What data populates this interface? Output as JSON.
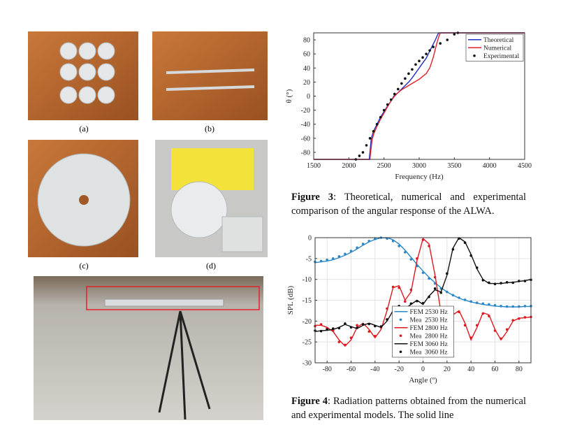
{
  "figure_labels": [
    "(a)",
    "(b)",
    "(c)",
    "(d)"
  ],
  "captions": {
    "figure3": {
      "label": "Figure 3",
      "text": ": Theoretical, numerical and experimental comparison of the angular response of the ALWA."
    },
    "figure4": {
      "label": "Figure 4",
      "text": ": Radiation patterns obtained from the numerical and experimental models. The solid line"
    }
  },
  "chart_data": [
    {
      "type": "line",
      "xlabel": "Frequency (Hz)",
      "ylabel": "θ (°)",
      "xlim": [
        1500,
        4500
      ],
      "ylim": [
        -90,
        90
      ],
      "xticks": [
        1500,
        2000,
        2500,
        3000,
        3500,
        4000,
        4500
      ],
      "yticks": [
        -80,
        -60,
        -40,
        -20,
        0,
        20,
        40,
        60,
        80
      ],
      "grid": false,
      "legend": "upper right",
      "series": [
        {
          "name": "Theoretical",
          "color": "#1f2fbf",
          "mode": "line",
          "x": [
            1500,
            2290,
            2300,
            2320,
            2350,
            2400,
            2450,
            2500,
            2550,
            2600,
            2640,
            2700,
            2750,
            2800,
            2850,
            2900,
            2950,
            3000,
            3050,
            3100,
            3130,
            3180,
            3230,
            3260,
            3280,
            3290,
            4500
          ],
          "values": [
            -90,
            -90,
            -80,
            -60,
            -50,
            -40,
            -30,
            -22,
            -14,
            -7,
            0,
            5,
            10,
            15,
            20,
            26,
            33,
            40,
            47,
            54,
            60,
            70,
            80,
            87,
            90,
            90,
            90
          ]
        },
        {
          "name": "Numerical",
          "color": "#e0202a",
          "mode": "line",
          "x": [
            1500,
            2300,
            2310,
            2330,
            2360,
            2400,
            2450,
            2500,
            2550,
            2600,
            2650,
            2700,
            2750,
            2800,
            2850,
            2900,
            2950,
            3000,
            3050,
            3100,
            3150,
            3200,
            3250,
            3280,
            3300,
            4500
          ],
          "values": [
            -90,
            -90,
            -80,
            -62,
            -52,
            -43,
            -33,
            -24,
            -15,
            -7,
            0,
            5,
            9,
            12,
            15,
            18,
            21,
            24,
            28,
            32,
            40,
            55,
            75,
            85,
            90,
            90
          ]
        },
        {
          "name": "Experimental",
          "color": "#111111",
          "mode": "markers",
          "x": [
            2100,
            2150,
            2200,
            2250,
            2300,
            2350,
            2400,
            2450,
            2500,
            2550,
            2600,
            2650,
            2700,
            2750,
            2800,
            2850,
            2900,
            2950,
            3000,
            3050,
            3100,
            3150,
            3200,
            3300,
            3400,
            3500,
            3550
          ],
          "values": [
            -90,
            -85,
            -80,
            -70,
            -60,
            -50,
            -40,
            -30,
            -20,
            -12,
            -5,
            3,
            10,
            18,
            25,
            32,
            38,
            45,
            50,
            55,
            60,
            65,
            70,
            75,
            80,
            88,
            90
          ]
        }
      ]
    },
    {
      "type": "line",
      "xlabel": "Angle (º)",
      "ylabel": "SPL (dB)",
      "xlim": [
        -90,
        90
      ],
      "ylim": [
        -30,
        0
      ],
      "xticks": [
        -80,
        -60,
        -40,
        -20,
        0,
        20,
        40,
        60,
        80
      ],
      "yticks": [
        -30,
        -25,
        -20,
        -15,
        -10,
        -5,
        0
      ],
      "grid": true,
      "legend": "lower center",
      "x": [
        -90,
        -85,
        -80,
        -75,
        -70,
        -65,
        -60,
        -55,
        -50,
        -45,
        -40,
        -35,
        -30,
        -25,
        -20,
        -15,
        -10,
        -5,
        0,
        5,
        10,
        15,
        20,
        25,
        30,
        35,
        40,
        45,
        50,
        55,
        60,
        65,
        70,
        75,
        80,
        85,
        90
      ],
      "series": [
        {
          "name": "FEM 2530 Hz",
          "color": "#2a87c8",
          "mode": "line",
          "values": [
            -6,
            -5.8,
            -5.6,
            -5.3,
            -4.8,
            -4.2,
            -3.5,
            -2.7,
            -1.8,
            -1,
            -0.4,
            -0.05,
            0,
            -0.5,
            -1.5,
            -3,
            -4.7,
            -6.4,
            -8,
            -9.5,
            -10.8,
            -12,
            -13,
            -13.8,
            -14.5,
            -15,
            -15.4,
            -15.7,
            -16,
            -16.2,
            -16.4,
            -16.5,
            -16.6,
            -16.6,
            -16.6,
            -16.5,
            -16.5
          ]
        },
        {
          "name": "Mea  2530 Hz",
          "color": "#2a87c8",
          "mode": "markers",
          "values": [
            -5.8,
            -5.6,
            -5.3,
            -5,
            -4.5,
            -3.9,
            -3.2,
            -2.4,
            -1.5,
            -0.8,
            -0.3,
            0,
            -0.2,
            -0.8,
            -2,
            -3.5,
            -5.2,
            -6.8,
            -8.4,
            -9.8,
            -11,
            -12.2,
            -13,
            -13.8,
            -14.4,
            -14.9,
            -15.3,
            -15.6,
            -15.8,
            -16,
            -16.2,
            -16.4,
            -16.5,
            -16.5,
            -16.5,
            -16.4,
            -16.4
          ]
        },
        {
          "name": "FEM 2800 Hz",
          "color": "#e0191f",
          "mode": "line",
          "values": [
            -21,
            -21,
            -21.5,
            -22.5,
            -24.5,
            -26,
            -24.5,
            -21.5,
            -20.5,
            -22,
            -24,
            -22,
            -17.5,
            -12,
            -11.5,
            -15,
            -13,
            -5.5,
            -0.2,
            -1.5,
            -9,
            -18,
            -21,
            -18.5,
            -17.5,
            -20.5,
            -24.5,
            -21.5,
            -18,
            -18.5,
            -22,
            -24.5,
            -22.5,
            -20,
            -19.3,
            -19.2,
            -19
          ]
        },
        {
          "name": "Mea  2800 Hz",
          "color": "#e0191f",
          "mode": "markers",
          "values": [
            -21.2,
            -20.8,
            -21.8,
            -22.3,
            -25,
            -25.7,
            -24,
            -21,
            -20.8,
            -22.5,
            -23.6,
            -21.5,
            -17,
            -11.8,
            -12,
            -15.3,
            -12.5,
            -5,
            -0.5,
            -2,
            -9.5,
            -17.5,
            -21.2,
            -18.2,
            -17.8,
            -21,
            -24,
            -21,
            -18.2,
            -18.8,
            -22.3,
            -24.2,
            -22,
            -19.8,
            -19.4,
            -19.1,
            -19
          ]
        },
        {
          "name": "FEM 3060 Hz",
          "color": "#111111",
          "mode": "line",
          "values": [
            -22.5,
            -22.3,
            -22.2,
            -22,
            -21.5,
            -20.8,
            -21.3,
            -21.8,
            -21,
            -20.5,
            -21,
            -21.5,
            -20,
            -17.5,
            -16.5,
            -17,
            -16,
            -15,
            -16,
            -14,
            -12.5,
            -13,
            -9,
            -2.5,
            0,
            -1,
            -4,
            -7.5,
            -10,
            -11,
            -11,
            -11,
            -10.8,
            -10.7,
            -10.5,
            -10.3,
            -10
          ]
        },
        {
          "name": "Mea  3060 Hz",
          "color": "#111111",
          "mode": "markers",
          "values": [
            -22.3,
            -22.4,
            -22,
            -21.8,
            -21.7,
            -20.6,
            -21.5,
            -21.6,
            -20.8,
            -20.7,
            -21.2,
            -21.3,
            -19.6,
            -17.8,
            -16.4,
            -17.2,
            -15.8,
            -15.2,
            -15.7,
            -14.2,
            -12.2,
            -13.2,
            -8.6,
            -2.8,
            -0.2,
            -1.2,
            -4.3,
            -7.2,
            -10.2,
            -10.8,
            -11.1,
            -10.9,
            -10.7,
            -10.8,
            -10.4,
            -10.4,
            -10.1
          ]
        }
      ]
    }
  ]
}
